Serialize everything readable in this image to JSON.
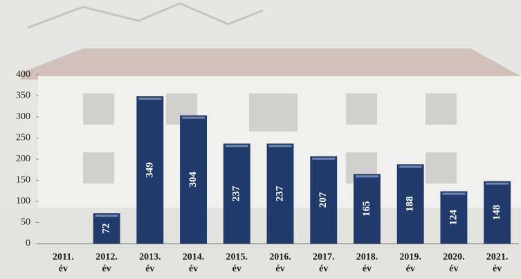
{
  "chart_data": {
    "type": "bar",
    "categories": [
      "2011. év",
      "2012. év",
      "2013. év",
      "2014. év",
      "2015. év",
      "2016. év",
      "2017. év",
      "2018. év",
      "2019. év",
      "2020. év",
      "2021. év"
    ],
    "values": [
      null,
      72,
      349,
      304,
      237,
      237,
      207,
      165,
      188,
      124,
      148
    ],
    "color": "#1f3a6b",
    "ylim": [
      0,
      400
    ],
    "yticks": [
      0,
      50,
      100,
      150,
      200,
      250,
      300,
      350,
      400
    ]
  }
}
